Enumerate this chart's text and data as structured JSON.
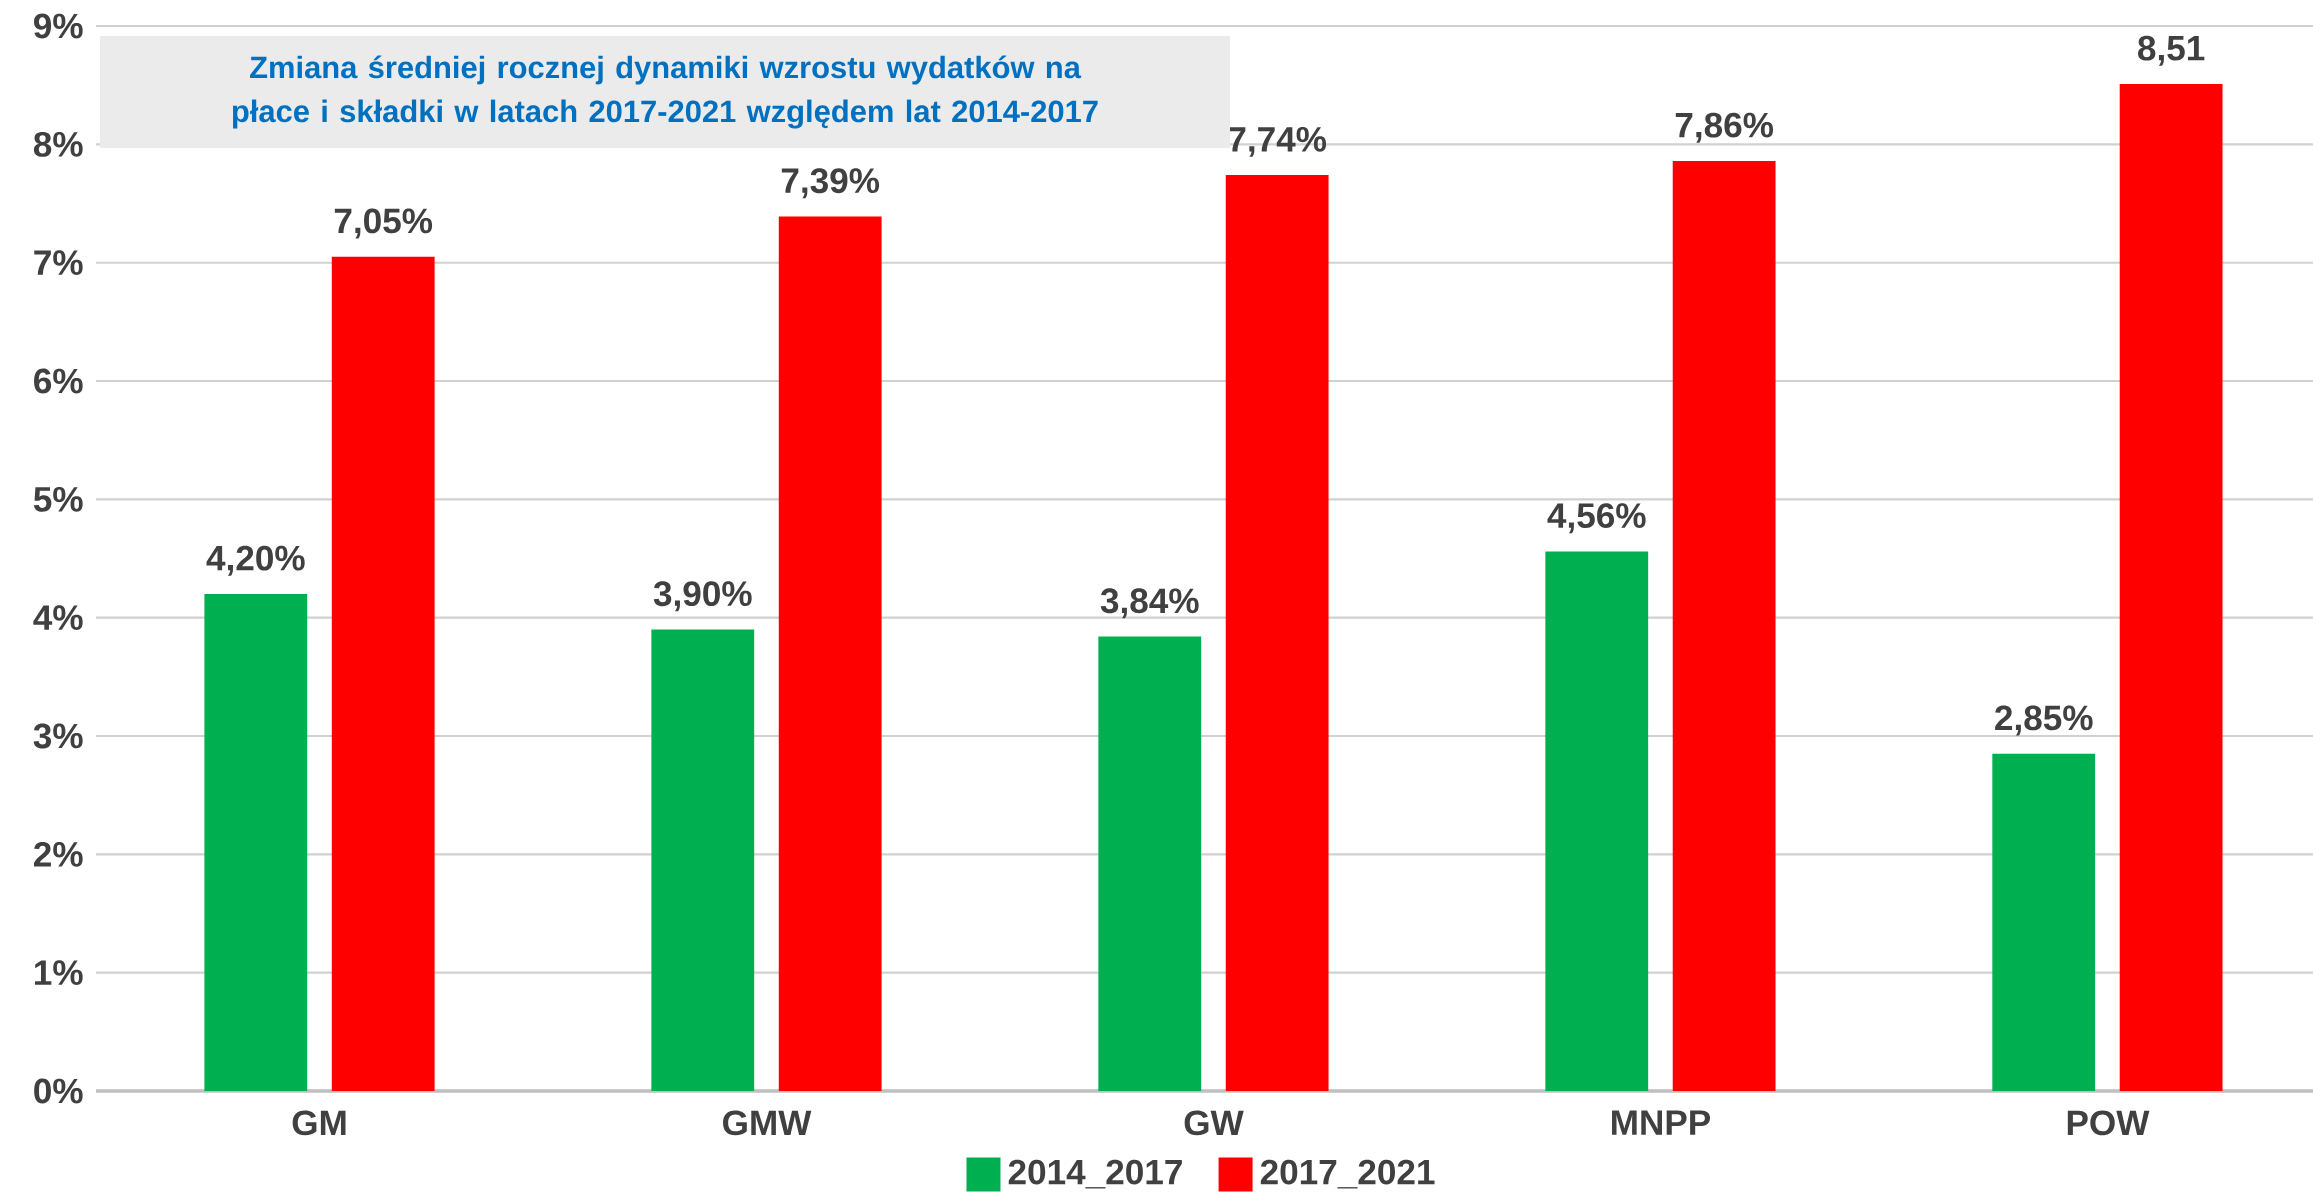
{
  "chart_data": {
    "type": "bar",
    "title": "Zmiana średniej rocznej dynamiki wzrostu wydatków na płace i składki w latach 2017-2021  względem  lat 2014-2017",
    "categories": [
      "GM",
      "GMW",
      "GW",
      "MNPP",
      "POW"
    ],
    "series": [
      {
        "name": "2014_2017",
        "color": "#00b050",
        "values": [
          4.2,
          3.9,
          3.84,
          4.56,
          2.85
        ],
        "value_labels": [
          "4,20%",
          "3,90%",
          "3,84%",
          "4,56%",
          "2,85%"
        ]
      },
      {
        "name": "2017_2021",
        "color": "#ff0000",
        "values": [
          7.05,
          7.39,
          7.74,
          7.86,
          8.51
        ],
        "value_labels": [
          "7,05%",
          "7,39%",
          "7,74%",
          "7,86%",
          "8,51"
        ]
      }
    ],
    "ylim": [
      0,
      9
    ],
    "yticks": [
      {
        "value": 0,
        "label": "0%"
      },
      {
        "value": 1,
        "label": "1%"
      },
      {
        "value": 2,
        "label": "2%"
      },
      {
        "value": 3,
        "label": "3%"
      },
      {
        "value": 4,
        "label": "4%"
      },
      {
        "value": 5,
        "label": "5%"
      },
      {
        "value": 6,
        "label": "6%"
      },
      {
        "value": 7,
        "label": "7%"
      },
      {
        "value": 8,
        "label": "8%"
      },
      {
        "value": 9,
        "label": "9%"
      }
    ],
    "grid": "y",
    "legend": "bottom"
  }
}
